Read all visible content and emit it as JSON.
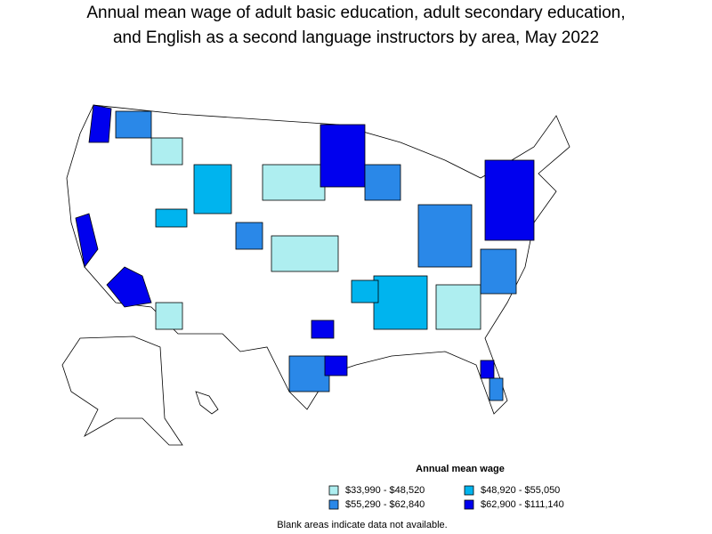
{
  "title": [
    "Annual mean wage of adult basic education, adult secondary education,",
    "and English as a second language instructors by area, May 2022"
  ],
  "legend": {
    "title": "Annual mean wage",
    "items": [
      {
        "label": "$33,990 - $48,520",
        "color": "#aeeef0"
      },
      {
        "label": "$48,920 - $55,050",
        "color": "#00b4ee"
      },
      {
        "label": "$55,290 - $62,840",
        "color": "#2a88e8"
      },
      {
        "label": "$62,900 - $111,140",
        "color": "#0000ee"
      }
    ]
  },
  "note": "Blank areas indicate data not available."
}
